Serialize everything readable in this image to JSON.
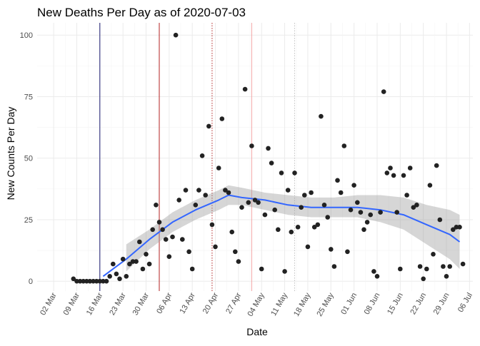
{
  "chart_data": {
    "type": "scatter",
    "title": "New Deaths Per Day as of 2020-07-03",
    "xlabel": "Date",
    "ylabel": "New Counts Per Day",
    "year": 2020,
    "x_ticks": [
      "02 Mar",
      "09 Mar",
      "16 Mar",
      "23 Mar",
      "30 Mar",
      "06 Apr",
      "13 Apr",
      "20 Apr",
      "27 Apr",
      "04 May",
      "11 May",
      "18 May",
      "25 May",
      "01 Jun",
      "08 Jun",
      "15 Jun",
      "22 Jun",
      "29 Jun",
      "06 Jul"
    ],
    "y_ticks": [
      0,
      25,
      50,
      75,
      100
    ],
    "xlim": [
      "2020-02-26",
      "2020-07-07"
    ],
    "ylim": [
      -4,
      105
    ],
    "grid": true,
    "point_color": "#222222",
    "points": [
      [
        "2020-03-08",
        1
      ],
      [
        "2020-03-09",
        0
      ],
      [
        "2020-03-10",
        0
      ],
      [
        "2020-03-11",
        0
      ],
      [
        "2020-03-12",
        0
      ],
      [
        "2020-03-13",
        0
      ],
      [
        "2020-03-14",
        0
      ],
      [
        "2020-03-15",
        0
      ],
      [
        "2020-03-16",
        0
      ],
      [
        "2020-03-17",
        0
      ],
      [
        "2020-03-18",
        0
      ],
      [
        "2020-03-19",
        2
      ],
      [
        "2020-03-20",
        7
      ],
      [
        "2020-03-21",
        3
      ],
      [
        "2020-03-22",
        1
      ],
      [
        "2020-03-23",
        9
      ],
      [
        "2020-03-24",
        2
      ],
      [
        "2020-03-25",
        7
      ],
      [
        "2020-03-26",
        8
      ],
      [
        "2020-03-27",
        8
      ],
      [
        "2020-03-28",
        16
      ],
      [
        "2020-03-29",
        5
      ],
      [
        "2020-03-30",
        11
      ],
      [
        "2020-03-31",
        7
      ],
      [
        "2020-04-01",
        21
      ],
      [
        "2020-04-02",
        31
      ],
      [
        "2020-04-03",
        24
      ],
      [
        "2020-04-04",
        21
      ],
      [
        "2020-04-05",
        17
      ],
      [
        "2020-04-06",
        10
      ],
      [
        "2020-04-07",
        18
      ],
      [
        "2020-04-08",
        100
      ],
      [
        "2020-04-09",
        33
      ],
      [
        "2020-04-10",
        17
      ],
      [
        "2020-04-11",
        37
      ],
      [
        "2020-04-12",
        12
      ],
      [
        "2020-04-13",
        5
      ],
      [
        "2020-04-14",
        31
      ],
      [
        "2020-04-15",
        37
      ],
      [
        "2020-04-16",
        51
      ],
      [
        "2020-04-17",
        35
      ],
      [
        "2020-04-18",
        63
      ],
      [
        "2020-04-19",
        23
      ],
      [
        "2020-04-20",
        14
      ],
      [
        "2020-04-21",
        46
      ],
      [
        "2020-04-22",
        66
      ],
      [
        "2020-04-23",
        37
      ],
      [
        "2020-04-24",
        36
      ],
      [
        "2020-04-25",
        20
      ],
      [
        "2020-04-26",
        12
      ],
      [
        "2020-04-27",
        8
      ],
      [
        "2020-04-28",
        30
      ],
      [
        "2020-04-29",
        78
      ],
      [
        "2020-04-30",
        32
      ],
      [
        "2020-05-01",
        55
      ],
      [
        "2020-05-02",
        33
      ],
      [
        "2020-05-03",
        32
      ],
      [
        "2020-05-04",
        5
      ],
      [
        "2020-05-05",
        27
      ],
      [
        "2020-05-06",
        54
      ],
      [
        "2020-05-07",
        48
      ],
      [
        "2020-05-08",
        29
      ],
      [
        "2020-05-09",
        21
      ],
      [
        "2020-05-10",
        44
      ],
      [
        "2020-05-11",
        4
      ],
      [
        "2020-05-12",
        37
      ],
      [
        "2020-05-13",
        20
      ],
      [
        "2020-05-14",
        44
      ],
      [
        "2020-05-15",
        22
      ],
      [
        "2020-05-16",
        30
      ],
      [
        "2020-05-17",
        35
      ],
      [
        "2020-05-18",
        14
      ],
      [
        "2020-05-19",
        36
      ],
      [
        "2020-05-20",
        22
      ],
      [
        "2020-05-21",
        23
      ],
      [
        "2020-05-22",
        67
      ],
      [
        "2020-05-23",
        31
      ],
      [
        "2020-05-24",
        26
      ],
      [
        "2020-05-25",
        13
      ],
      [
        "2020-05-26",
        6
      ],
      [
        "2020-05-27",
        41
      ],
      [
        "2020-05-28",
        36
      ],
      [
        "2020-05-29",
        55
      ],
      [
        "2020-05-30",
        12
      ],
      [
        "2020-05-31",
        29
      ],
      [
        "2020-06-01",
        39
      ],
      [
        "2020-06-02",
        32
      ],
      [
        "2020-06-03",
        28
      ],
      [
        "2020-06-04",
        21
      ],
      [
        "2020-06-05",
        24
      ],
      [
        "2020-06-06",
        27
      ],
      [
        "2020-06-07",
        4
      ],
      [
        "2020-06-08",
        2
      ],
      [
        "2020-06-09",
        28
      ],
      [
        "2020-06-10",
        77
      ],
      [
        "2020-06-11",
        44
      ],
      [
        "2020-06-12",
        46
      ],
      [
        "2020-06-13",
        43
      ],
      [
        "2020-06-14",
        28
      ],
      [
        "2020-06-15",
        5
      ],
      [
        "2020-06-16",
        43
      ],
      [
        "2020-06-17",
        35
      ],
      [
        "2020-06-18",
        46
      ],
      [
        "2020-06-19",
        30
      ],
      [
        "2020-06-20",
        31
      ],
      [
        "2020-06-21",
        6
      ],
      [
        "2020-06-22",
        1
      ],
      [
        "2020-06-23",
        5
      ],
      [
        "2020-06-24",
        39
      ],
      [
        "2020-06-25",
        11
      ],
      [
        "2020-06-26",
        47
      ],
      [
        "2020-06-27",
        25
      ],
      [
        "2020-06-28",
        6
      ],
      [
        "2020-06-29",
        2
      ],
      [
        "2020-06-30",
        6
      ],
      [
        "2020-07-01",
        21
      ],
      [
        "2020-07-02",
        22
      ],
      [
        "2020-07-03",
        22
      ],
      [
        "2020-07-04",
        7
      ]
    ],
    "smooth": {
      "color": "#3366FF",
      "band_color": "#999999",
      "x": [
        "2020-03-17",
        "2020-03-24",
        "2020-03-31",
        "2020-04-07",
        "2020-04-14",
        "2020-04-21",
        "2020-04-24",
        "2020-04-28",
        "2020-05-05",
        "2020-05-12",
        "2020-05-19",
        "2020-05-26",
        "2020-06-02",
        "2020-06-09",
        "2020-06-16",
        "2020-06-23",
        "2020-06-30",
        "2020-07-03"
      ],
      "y": [
        2,
        9,
        17,
        24,
        29,
        33,
        35,
        34,
        33,
        31,
        30,
        30,
        30,
        29,
        27,
        23,
        19,
        16
      ],
      "lo": [
        null,
        4,
        13,
        20,
        25,
        29,
        31,
        31,
        29,
        27,
        26,
        26,
        26,
        24,
        21,
        15,
        9,
        5
      ],
      "hi": [
        null,
        15,
        21,
        28,
        33,
        37,
        39,
        38,
        36,
        35,
        34,
        34,
        35,
        35,
        34,
        31,
        29,
        27
      ]
    },
    "vlines": [
      {
        "x": "2020-03-16",
        "color": "#191970",
        "style": "solid"
      },
      {
        "x": "2020-04-03",
        "color": "#B22222",
        "style": "solid"
      },
      {
        "x": "2020-04-19",
        "color": "#B22222",
        "style": "dotted"
      },
      {
        "x": "2020-05-01",
        "color": "#F4A6A6",
        "style": "solid"
      },
      {
        "x": "2020-05-14",
        "color": "#C0C0C0",
        "style": "dotted"
      }
    ]
  }
}
